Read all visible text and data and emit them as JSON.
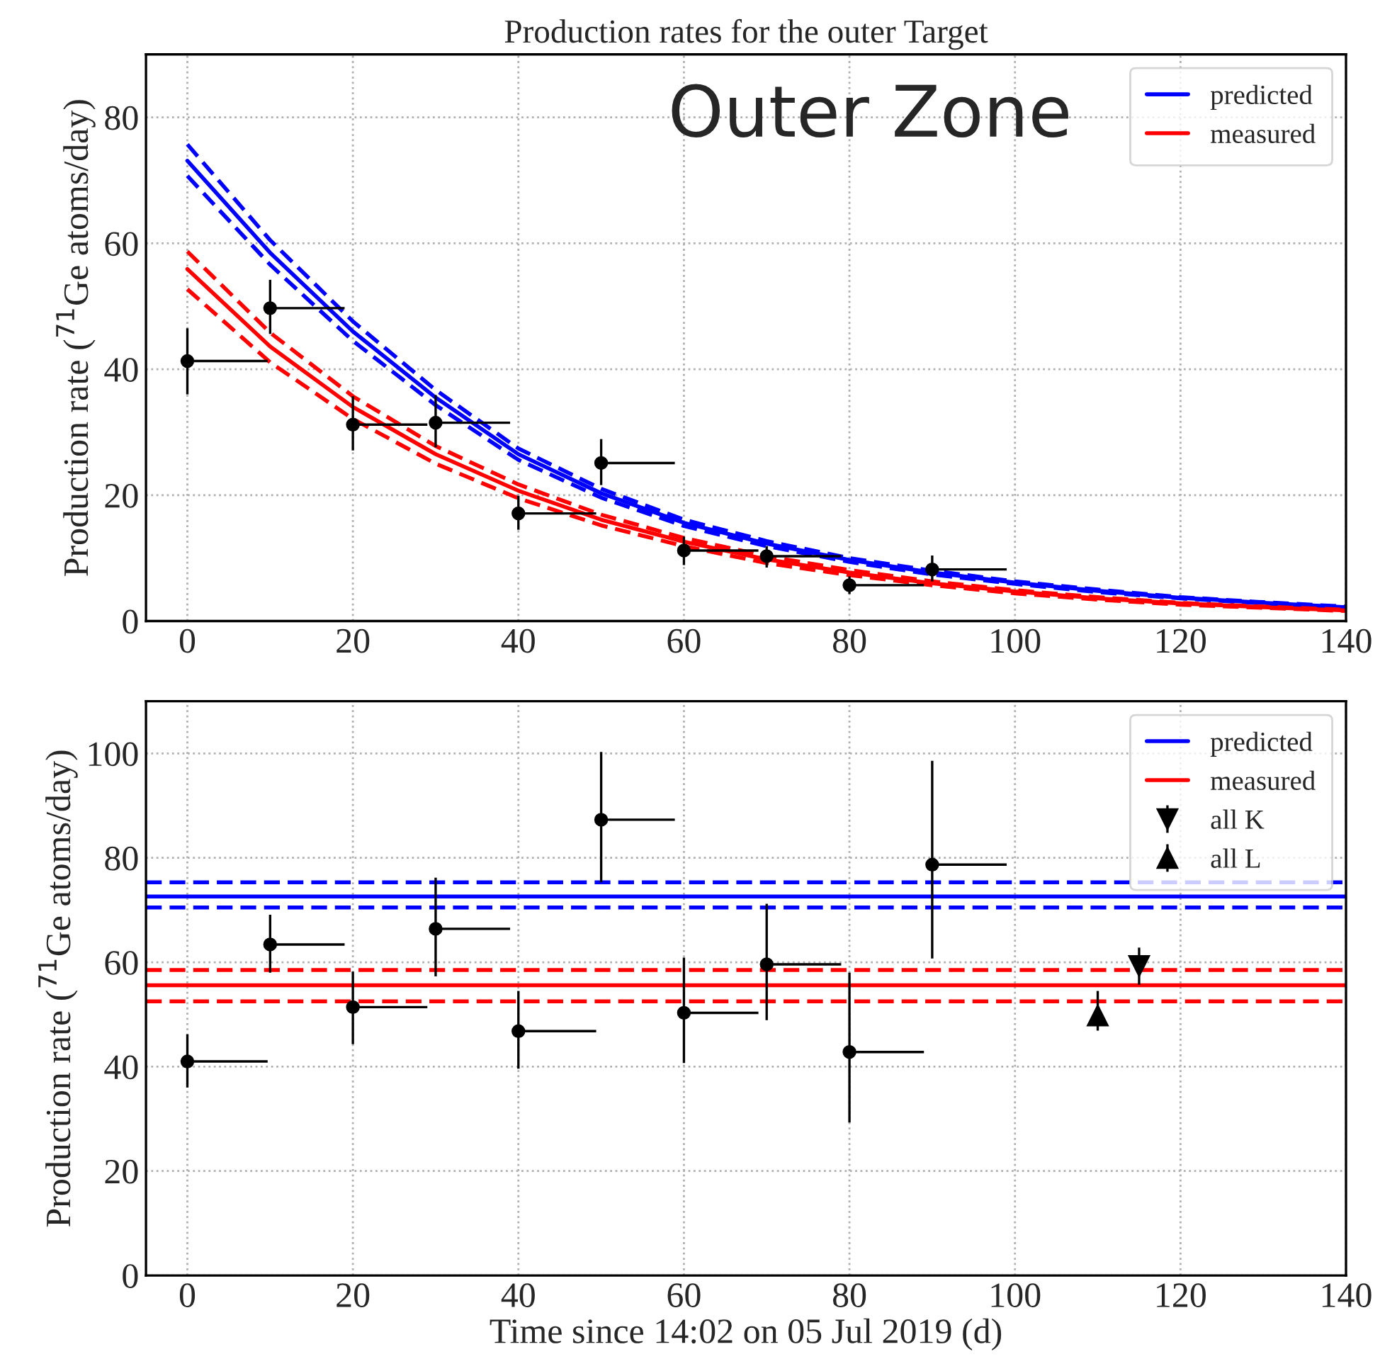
{
  "chart_data": [
    {
      "type": "line",
      "title": "Production rates for the outer Target",
      "ylabel": "Production rate ($^{71}$Ge atoms/day)",
      "annotations": [
        "Outer Zone"
      ],
      "xlim": [
        -5,
        140
      ],
      "xticks": [
        0,
        20,
        40,
        60,
        80,
        100,
        120,
        140
      ],
      "ylim": [
        0,
        90
      ],
      "yticks": [
        0,
        20,
        40,
        60,
        80
      ],
      "grid": true,
      "legend": "top right",
      "series": [
        {
          "name": "predicted",
          "color": "#0000ff",
          "line_style": "solid",
          "x": [
            0,
            10,
            20,
            30,
            40,
            50,
            60,
            70,
            80,
            90,
            100,
            110,
            120,
            130,
            140
          ],
          "values": [
            73.1,
            58.5,
            46.0,
            35.5,
            26.5,
            20.3,
            15.6,
            12.3,
            9.7,
            7.7,
            6.1,
            4.8,
            3.7,
            2.9,
            2.2
          ]
        },
        {
          "color": "#0000ff",
          "line_style": "dashed",
          "x": [
            0,
            10,
            20,
            30,
            40,
            50,
            60,
            70,
            80,
            90,
            100,
            110,
            120,
            130,
            140
          ],
          "values": [
            75.7,
            60.5,
            47.6,
            36.7,
            27.4,
            21.0,
            16.1,
            12.7,
            10.0,
            8.0,
            6.3,
            5.0,
            3.8,
            3.0,
            2.3
          ]
        },
        {
          "color": "#0000ff",
          "line_style": "dashed",
          "x": [
            0,
            10,
            20,
            30,
            40,
            50,
            60,
            70,
            80,
            90,
            100,
            110,
            120,
            130,
            140
          ],
          "values": [
            70.7,
            56.6,
            44.5,
            34.3,
            25.6,
            19.6,
            15.1,
            11.9,
            9.4,
            7.4,
            5.9,
            4.6,
            3.6,
            2.8,
            2.1
          ]
        },
        {
          "name": "measured",
          "color": "#ff0000",
          "line_style": "solid",
          "x": [
            0,
            10,
            20,
            30,
            40,
            50,
            60,
            70,
            80,
            90,
            100,
            110,
            120,
            130,
            140
          ],
          "values": [
            55.9,
            43.6,
            34.0,
            26.5,
            20.7,
            16.1,
            12.6,
            9.8,
            7.7,
            6.0,
            4.7,
            3.6,
            2.8,
            2.2,
            1.7
          ]
        },
        {
          "color": "#ff0000",
          "line_style": "dashed",
          "x": [
            0,
            10,
            20,
            30,
            40,
            50,
            60,
            70,
            80,
            90,
            100,
            110,
            120,
            130,
            140
          ],
          "values": [
            58.7,
            45.8,
            35.7,
            27.8,
            21.7,
            16.9,
            13.2,
            10.3,
            8.1,
            6.3,
            4.9,
            3.8,
            2.9,
            2.3,
            1.8
          ]
        },
        {
          "color": "#ff0000",
          "line_style": "dashed",
          "x": [
            0,
            10,
            20,
            30,
            40,
            50,
            60,
            70,
            80,
            90,
            100,
            110,
            120,
            130,
            140
          ],
          "values": [
            52.7,
            41.1,
            32.1,
            25.0,
            19.5,
            15.2,
            11.9,
            9.2,
            7.3,
            5.7,
            4.4,
            3.4,
            2.6,
            2.1,
            1.6
          ]
        },
        {
          "type": "scatter",
          "color": "#000000",
          "marker": "circle",
          "x": [
            0,
            10,
            20,
            30,
            40,
            50,
            60,
            70,
            80,
            90
          ],
          "values": [
            41.3,
            49.7,
            31.2,
            31.5,
            17.1,
            25.1,
            11.2,
            10.3,
            5.7,
            8.2
          ],
          "errors": [
            [
              36.0,
              46.5
            ],
            [
              45.6,
              54.2
            ],
            [
              27.1,
              35.7
            ],
            [
              27.6,
              35.9
            ],
            [
              14.5,
              19.9
            ],
            [
              21.6,
              28.9
            ],
            [
              8.9,
              13.4
            ],
            [
              8.5,
              11.9
            ],
            [
              4.3,
              7.1
            ],
            [
              6.3,
              10.4
            ]
          ],
          "xerrors": [
            [
              0,
              9.7
            ],
            [
              10,
              19
            ],
            [
              20,
              29
            ],
            [
              30,
              39
            ],
            [
              40,
              49.4
            ],
            [
              50,
              58.9
            ],
            [
              60,
              69
            ],
            [
              70,
              79
            ],
            [
              80,
              89
            ],
            [
              90,
              99
            ]
          ]
        }
      ]
    },
    {
      "type": "line",
      "xlabel": "Time since 14:02 on 05 Jul 2019 (d)",
      "ylabel": "Production rate ($^{71}$Ge atoms/day)",
      "xlim": [
        -5,
        140
      ],
      "xticks": [
        0,
        20,
        40,
        60,
        80,
        100,
        120,
        140
      ],
      "ylim": [
        0,
        110
      ],
      "yticks": [
        0,
        20,
        40,
        60,
        80,
        100
      ],
      "grid": true,
      "legend": "top right",
      "series": [
        {
          "name": "predicted",
          "color": "#0000ff",
          "line_style": "solid",
          "x": [
            -5,
            140
          ],
          "values": [
            72.6,
            72.6
          ]
        },
        {
          "color": "#0000ff",
          "line_style": "dashed",
          "x": [
            -5,
            140
          ],
          "values": [
            75.3,
            75.3
          ]
        },
        {
          "color": "#0000ff",
          "line_style": "dashed",
          "x": [
            -5,
            140
          ],
          "values": [
            70.5,
            70.5
          ]
        },
        {
          "name": "measured",
          "color": "#ff0000",
          "line_style": "solid",
          "x": [
            -5,
            140
          ],
          "values": [
            55.6,
            55.6
          ]
        },
        {
          "color": "#ff0000",
          "line_style": "dashed",
          "x": [
            -5,
            140
          ],
          "values": [
            58.5,
            58.5
          ]
        },
        {
          "color": "#ff0000",
          "line_style": "dashed",
          "x": [
            -5,
            140
          ],
          "values": [
            52.5,
            52.5
          ]
        },
        {
          "type": "scatter",
          "color": "#000000",
          "marker": "circle",
          "x": [
            0,
            10,
            20,
            30,
            40,
            50,
            60,
            70,
            80,
            90
          ],
          "values": [
            41.0,
            63.4,
            51.4,
            66.4,
            46.8,
            87.3,
            50.3,
            59.6,
            42.8,
            78.7
          ],
          "errors": [
            [
              36.0,
              46.2
            ],
            [
              58.0,
              69.1
            ],
            [
              44.3,
              58.2
            ],
            [
              57.3,
              76.2
            ],
            [
              39.6,
              54.5
            ],
            [
              75.3,
              100.3
            ],
            [
              40.7,
              60.9
            ],
            [
              48.9,
              71.2
            ],
            [
              29.3,
              58.0
            ],
            [
              60.7,
              98.6
            ]
          ],
          "xerrors": [
            [
              0,
              9.7
            ],
            [
              10,
              19
            ],
            [
              20,
              29
            ],
            [
              30,
              39
            ],
            [
              40,
              49.4
            ],
            [
              50,
              58.9
            ],
            [
              60,
              69
            ],
            [
              70,
              79
            ],
            [
              80,
              89
            ],
            [
              90,
              99
            ]
          ]
        },
        {
          "name": "all K",
          "type": "scatter",
          "color": "#000000",
          "marker": "triangle_down",
          "x": [
            115
          ],
          "values": [
            59.3
          ],
          "errors": [
            [
              55.7,
              62.8
            ]
          ]
        },
        {
          "name": "all L",
          "type": "scatter",
          "color": "#000000",
          "marker": "triangle",
          "x": [
            110
          ],
          "values": [
            49.8
          ],
          "errors": [
            [
              46.9,
              54.5
            ]
          ]
        }
      ]
    }
  ]
}
